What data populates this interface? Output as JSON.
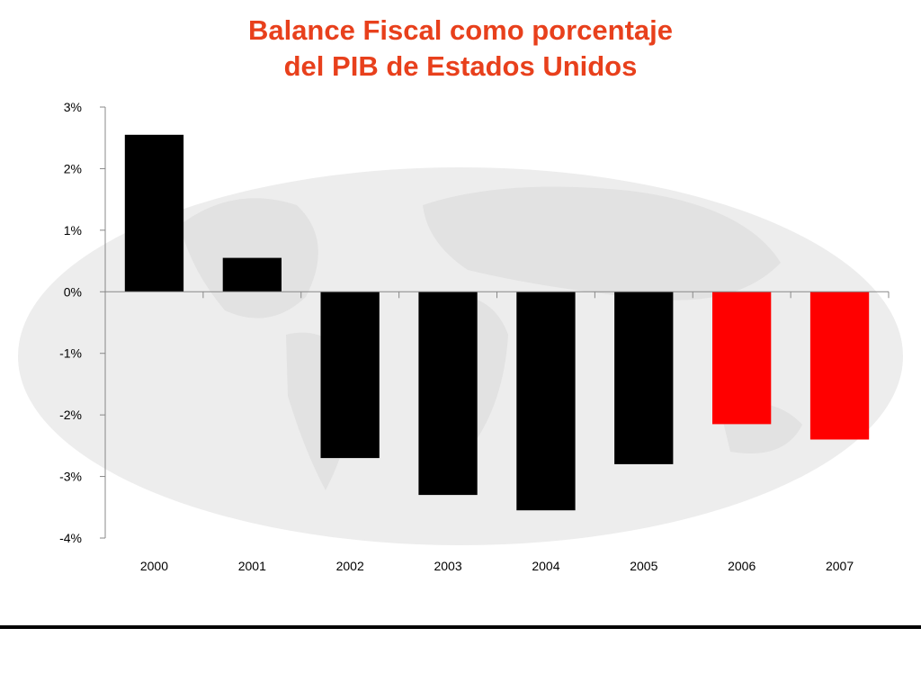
{
  "slide": {
    "title_line1": "Balance Fiscal como porcentaje",
    "title_line2": "del PIB de Estados Unidos",
    "title_color": "#e8401c",
    "background_image": "world-map-watermark"
  },
  "chart_data": {
    "type": "bar",
    "title": "Balance Fiscal como porcentaje del PIB de Estados Unidos",
    "xlabel": "",
    "ylabel": "",
    "categories": [
      "2000",
      "2001",
      "2002",
      "2003",
      "2004",
      "2005",
      "2006",
      "2007"
    ],
    "values": [
      2.55,
      0.55,
      -2.7,
      -3.3,
      -3.55,
      -2.8,
      -2.15,
      -2.4
    ],
    "bar_colors": [
      "#000000",
      "#000000",
      "#000000",
      "#000000",
      "#000000",
      "#000000",
      "#ff0000",
      "#ff0000"
    ],
    "ylim": [
      -4,
      3
    ],
    "yticks": [
      3,
      2,
      1,
      0,
      -1,
      -2,
      -3,
      -4
    ],
    "ytick_labels": [
      "3%",
      "2%",
      "1%",
      "0%",
      "-1%",
      "-2%",
      "-3%",
      "-4%"
    ],
    "grid": false,
    "legend": "none"
  }
}
